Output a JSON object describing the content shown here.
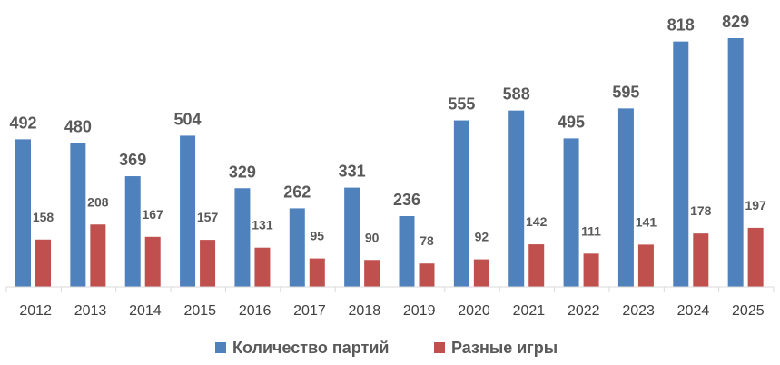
{
  "chart_data": {
    "type": "bar",
    "title": "",
    "xlabel": "",
    "ylabel": "",
    "categories": [
      "2012",
      "2013",
      "2014",
      "2015",
      "2016",
      "2017",
      "2018",
      "2019",
      "2020",
      "2021",
      "2022",
      "2023",
      "2024",
      "2025"
    ],
    "series": [
      {
        "name": "Количество партий",
        "color": "#4f81bd",
        "values": [
          492,
          480,
          369,
          504,
          329,
          262,
          331,
          236,
          555,
          588,
          495,
          595,
          818,
          829
        ]
      },
      {
        "name": "Разные игры",
        "color": "#c0504d",
        "values": [
          158,
          208,
          167,
          157,
          131,
          95,
          90,
          78,
          92,
          142,
          111,
          141,
          178,
          197
        ]
      }
    ],
    "ylim": [
      0,
      850
    ],
    "grid": false,
    "y_axis_visible": false,
    "data_labels": true,
    "legend_position": "bottom"
  }
}
